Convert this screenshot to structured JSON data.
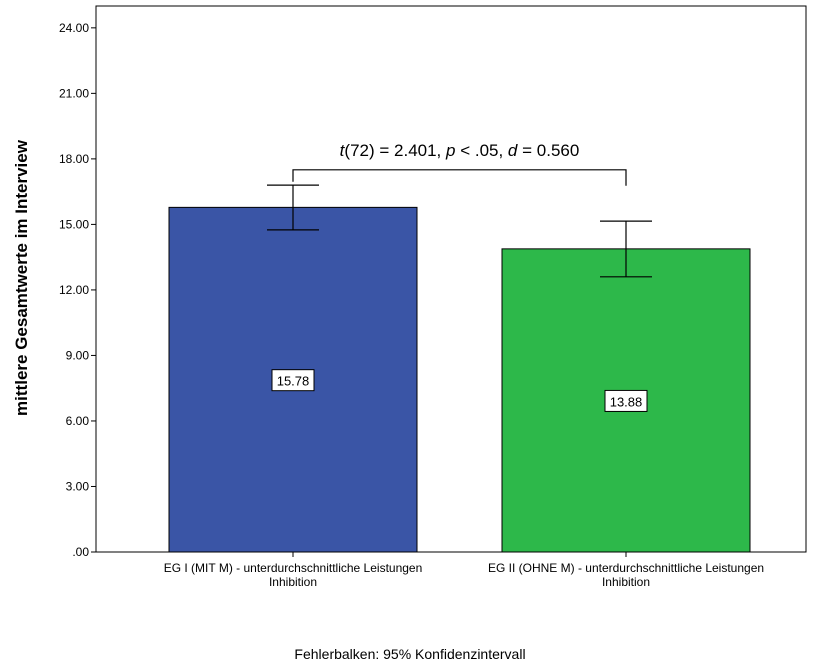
{
  "chart_data": {
    "type": "bar",
    "ylabel": "mittlere Gesamtwerte im Interview",
    "ylim": [
      0,
      25
    ],
    "yticks": [
      0,
      3,
      6,
      9,
      12,
      15,
      18,
      21,
      24
    ],
    "ytick_labels": [
      ".00",
      "3.00",
      "6.00",
      "9.00",
      "12.00",
      "15.00",
      "18.00",
      "21.00",
      "24.00"
    ],
    "categories": [
      [
        "EG I (MIT M) - unterdurchschnittliche Leistungen",
        "Inhibition"
      ],
      [
        "EG II (OHNE M) - unterdurchschnittliche Leistungen",
        "Inhibition"
      ]
    ],
    "values": [
      15.78,
      13.88
    ],
    "value_labels": [
      "15.78",
      "13.88"
    ],
    "ci_low": [
      14.75,
      12.6
    ],
    "ci_high": [
      16.8,
      15.15
    ],
    "bar_colors": [
      "#3a55a6",
      "#2db84a"
    ],
    "annotation": {
      "parts": [
        {
          "text": "t",
          "italic": true
        },
        {
          "text": "(72) = 2.401, ",
          "italic": false
        },
        {
          "text": "p",
          "italic": true
        },
        {
          "text": " < .05, ",
          "italic": false
        },
        {
          "text": "d",
          "italic": true
        },
        {
          "text": " = 0.560",
          "italic": false
        }
      ],
      "bracket_top": 17.5,
      "bracket_bottom_left": 16.8,
      "bracket_bottom_right": 16.8
    },
    "footnote": "Fehlerbalken: 95% Konfidenzintervall",
    "grid": false
  }
}
